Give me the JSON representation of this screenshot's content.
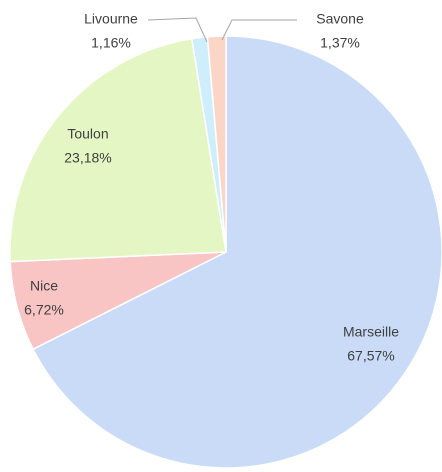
{
  "chart_data": {
    "type": "pie",
    "categories": [
      "Marseille",
      "Nice",
      "Toulon",
      "Livourne",
      "Savone"
    ],
    "values": [
      67.57,
      6.72,
      23.18,
      1.16,
      1.37
    ],
    "value_labels": [
      "67,57%",
      "6,72%",
      "23,18%",
      "1,16%",
      "1,37%"
    ],
    "colors": [
      "#c9dbf7",
      "#f8c4c4",
      "#e4f6c3",
      "#cfeefb",
      "#fbd6c6"
    ]
  }
}
